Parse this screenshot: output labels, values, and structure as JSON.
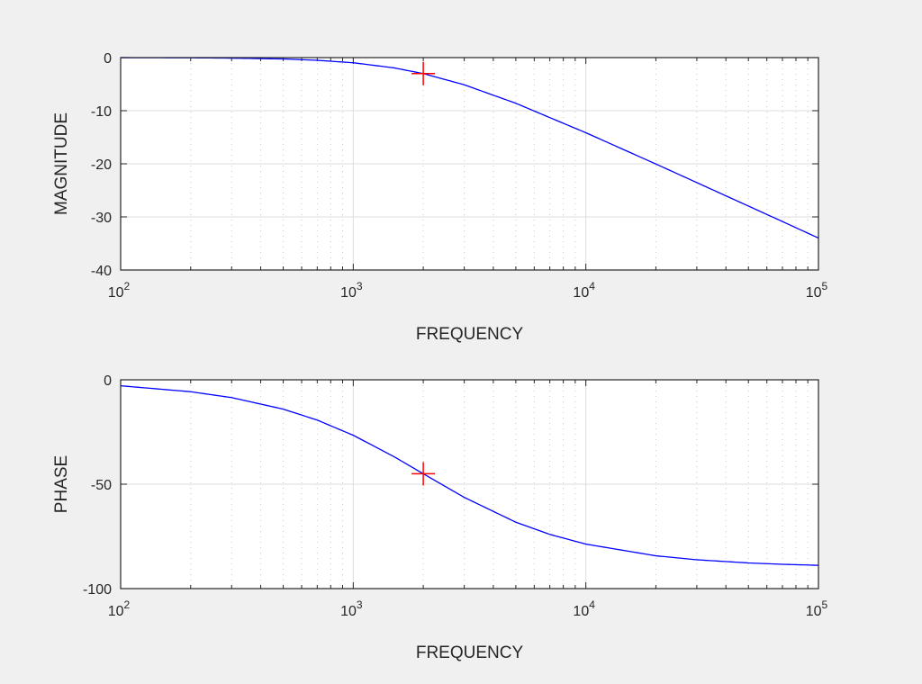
{
  "figure": {
    "background": "#f0f0f0",
    "axes_background": "#ffffff",
    "line_color": "#0000ff",
    "marker_color": "#ff0000",
    "grid_major_color": "#dcdcdc",
    "grid_minor_color": "#c8c8c8",
    "axes_color": "#262626"
  },
  "chart_data": [
    {
      "type": "line",
      "title": "",
      "xlabel": "FREQUENCY",
      "ylabel": "MAGNITUDE",
      "xscale": "log",
      "xlim": [
        100,
        100000
      ],
      "ylim": [
        -40,
        0
      ],
      "xticks": [
        100,
        1000,
        10000,
        100000
      ],
      "xtick_labels": [
        {
          "base": "10",
          "exp": "2"
        },
        {
          "base": "10",
          "exp": "3"
        },
        {
          "base": "10",
          "exp": "4"
        },
        {
          "base": "10",
          "exp": "5"
        }
      ],
      "yticks": [
        0,
        -10,
        -20,
        -30,
        -40
      ],
      "ytick_labels": [
        "0",
        "-10",
        "-20",
        "-30",
        "-40"
      ],
      "grid": true,
      "minor_grid": true,
      "legend": null,
      "series": [
        {
          "name": "magnitude",
          "color": "#0000ff",
          "x": [
            100,
            200,
            300,
            500,
            700,
            1000,
            1500,
            2000,
            3000,
            5000,
            7000,
            10000,
            20000,
            30000,
            50000,
            70000,
            100000
          ],
          "y": [
            -0.01,
            -0.04,
            -0.1,
            -0.26,
            -0.51,
            -0.97,
            -1.94,
            -3.01,
            -5.12,
            -8.6,
            -11.3,
            -14.15,
            -20.04,
            -23.54,
            -27.96,
            -30.87,
            -33.98
          ]
        }
      ],
      "annotations": [
        {
          "type": "marker",
          "shape": "+",
          "color": "#ff0000",
          "x": 2000,
          "y": -3.01
        }
      ]
    },
    {
      "type": "line",
      "title": "",
      "xlabel": "FREQUENCY",
      "ylabel": "PHASE",
      "xscale": "log",
      "xlim": [
        100,
        100000
      ],
      "ylim": [
        -100,
        0
      ],
      "xticks": [
        100,
        1000,
        10000,
        100000
      ],
      "xtick_labels": [
        {
          "base": "10",
          "exp": "2"
        },
        {
          "base": "10",
          "exp": "3"
        },
        {
          "base": "10",
          "exp": "4"
        },
        {
          "base": "10",
          "exp": "5"
        }
      ],
      "yticks": [
        0,
        -50,
        -100
      ],
      "ytick_labels": [
        "0",
        "-50",
        "-100"
      ],
      "grid": true,
      "minor_grid": true,
      "legend": null,
      "series": [
        {
          "name": "phase",
          "color": "#0000ff",
          "x": [
            100,
            200,
            300,
            500,
            700,
            1000,
            1500,
            2000,
            3000,
            5000,
            7000,
            10000,
            20000,
            30000,
            50000,
            70000,
            100000
          ],
          "y": [
            -2.86,
            -5.71,
            -8.53,
            -14.04,
            -19.29,
            -26.57,
            -36.87,
            -45.0,
            -56.31,
            -68.2,
            -74.05,
            -78.69,
            -84.29,
            -86.19,
            -87.71,
            -88.36,
            -88.85
          ]
        }
      ],
      "annotations": [
        {
          "type": "marker",
          "shape": "+",
          "color": "#ff0000",
          "x": 2000,
          "y": -45.0
        }
      ]
    }
  ]
}
